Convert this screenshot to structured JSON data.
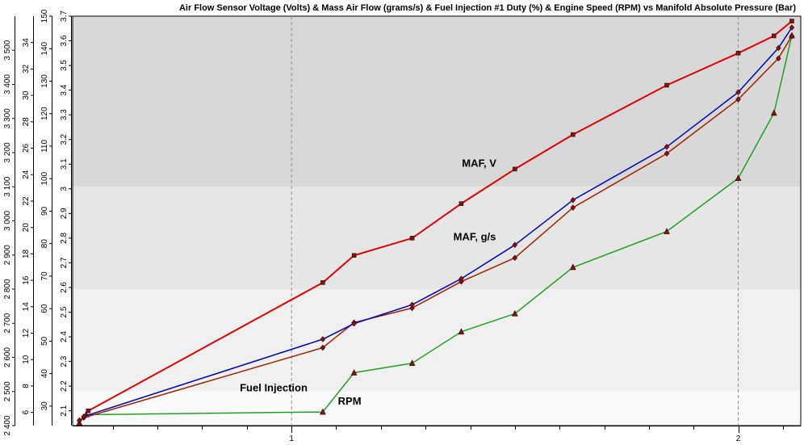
{
  "chart_data": {
    "type": "line",
    "title": "Air Flow Sensor Voltage (Volts) & Mass Air Flow (grams/s) & Fuel Injection #1 Duty (%) & Engine Speed (RPM) vs Manifold Absolute Pressure (Bar)",
    "xlabel": "",
    "ylabel": "",
    "xlim": [
      0.51,
      2.14
    ],
    "x_ticks": [
      "1",
      "2"
    ],
    "axes": {
      "rpm": {
        "range": [
          2400,
          3600
        ],
        "ticks": [
          "2 400",
          "2 500",
          "2 600",
          "2 700",
          "2 800",
          "2 900",
          "3 000",
          "3 100",
          "3 200",
          "3 300",
          "3 400",
          "3 500"
        ]
      },
      "duty": {
        "range": [
          5,
          36
        ],
        "ticks": [
          "6",
          "8",
          "10",
          "12",
          "14",
          "16",
          "18",
          "20",
          "22",
          "24",
          "26",
          "28",
          "30",
          "32",
          "34"
        ]
      },
      "maf": {
        "range": [
          24,
          150
        ],
        "ticks": [
          "30",
          "40",
          "50",
          "60",
          "70",
          "80",
          "90",
          "100",
          "110",
          "120",
          "130",
          "140",
          "150"
        ]
      },
      "volts": {
        "range": [
          2.04,
          3.7
        ],
        "ticks": [
          "2.1",
          "2.2",
          "2.3",
          "2.4",
          "2.5",
          "2.6",
          "2.7",
          "2.8",
          "2.9",
          "3",
          "3.1",
          "3.2",
          "3.3",
          "3.4",
          "3.5",
          "3.6",
          "3.7"
        ]
      }
    },
    "series": [
      {
        "name": "MAF, V",
        "color": "#e00000",
        "axis": "volts",
        "marker": "square",
        "points": [
          [
            0.545,
            2.1
          ],
          [
            1.07,
            2.62
          ],
          [
            1.14,
            2.73
          ],
          [
            1.27,
            2.8
          ],
          [
            1.38,
            2.94
          ],
          [
            1.5,
            3.08
          ],
          [
            1.63,
            3.22
          ],
          [
            1.84,
            3.42
          ],
          [
            2.0,
            3.55
          ],
          [
            2.08,
            3.62
          ],
          [
            2.12,
            3.68
          ]
        ]
      },
      {
        "name": "MAF, g/s",
        "color": "#0000c0",
        "axis": "maf",
        "marker": "diamond",
        "points": [
          [
            0.535,
            26.8
          ],
          [
            1.07,
            50.6
          ],
          [
            1.14,
            55.4
          ],
          [
            1.27,
            61.2
          ],
          [
            1.38,
            69.2
          ],
          [
            1.5,
            79.6
          ],
          [
            1.63,
            93.4
          ],
          [
            1.84,
            109.8
          ],
          [
            2.0,
            126.6
          ],
          [
            2.09,
            140.2
          ],
          [
            2.12,
            146.5
          ]
        ]
      },
      {
        "name": "Fuel Injection",
        "color": "#a02000",
        "axis": "duty",
        "marker": "diamond",
        "points": [
          [
            0.525,
            5.4
          ],
          [
            0.535,
            5.6
          ],
          [
            1.07,
            10.9
          ],
          [
            1.14,
            12.8
          ],
          [
            1.27,
            13.9
          ],
          [
            1.38,
            15.9
          ],
          [
            1.5,
            17.7
          ],
          [
            1.63,
            21.5
          ],
          [
            1.84,
            25.6
          ],
          [
            2.0,
            29.7
          ],
          [
            2.09,
            32.8
          ],
          [
            2.12,
            34.5
          ]
        ]
      },
      {
        "name": "RPM",
        "color": "#20a020",
        "axis": "rpm",
        "marker": "triangle",
        "points": [
          [
            0.525,
            2408
          ],
          [
            0.54,
            2432
          ],
          [
            1.07,
            2440
          ],
          [
            1.14,
            2555
          ],
          [
            1.27,
            2583
          ],
          [
            1.38,
            2675
          ],
          [
            1.5,
            2728
          ],
          [
            1.63,
            2864
          ],
          [
            1.84,
            2969
          ],
          [
            2.0,
            3125
          ],
          [
            2.08,
            3316
          ],
          [
            2.12,
            3543
          ]
        ]
      }
    ],
    "annotations": [
      {
        "text": "MAF, V",
        "x": 1.42,
        "axis": "volts",
        "y": 3.09
      },
      {
        "text": "MAF, g/s",
        "x": 1.41,
        "axis": "maf",
        "y": 81
      },
      {
        "text": "Fuel Injection",
        "x": 0.96,
        "axis": "duty",
        "y": 7.6
      },
      {
        "text": "RPM",
        "x": 1.13,
        "axis": "rpm",
        "y": 2462
      }
    ],
    "grid": true,
    "background_bands": [
      "#d8d8d8",
      "#e6e6e6",
      "#f0f0f0",
      "#fafafa"
    ]
  }
}
